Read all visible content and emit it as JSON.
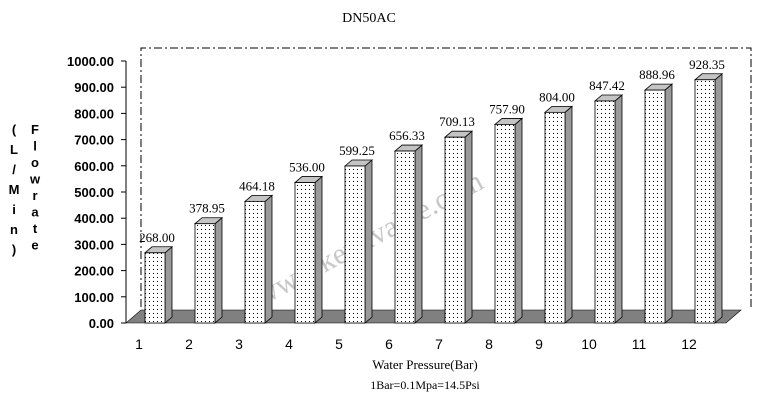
{
  "chart_data": {
    "type": "bar",
    "title": "DN50AC",
    "xlabel": "Water Pressure(Bar)",
    "note": "1Bar=0.1Mpa=14.5Psi",
    "ylabel_left": "(L/Min)",
    "ylabel_right": "Flowrate",
    "ylim": [
      0,
      1000
    ],
    "yticks": [
      "0.00",
      "100.00",
      "200.00",
      "300.00",
      "400.00",
      "500.00",
      "600.00",
      "700.00",
      "800.00",
      "900.00",
      "1000.00"
    ],
    "categories": [
      "1",
      "2",
      "3",
      "4",
      "5",
      "6",
      "7",
      "8",
      "9",
      "10",
      "11",
      "12"
    ],
    "values": [
      268.0,
      378.95,
      464.18,
      536.0,
      599.25,
      656.33,
      709.13,
      757.9,
      804.0,
      847.42,
      888.96,
      928.35
    ],
    "value_labels": [
      "268.00",
      "378.95",
      "464.18",
      "536.00",
      "599.25",
      "656.33",
      "709.13",
      "757.90",
      "804.00",
      "847.42",
      "888.96",
      "928.35"
    ],
    "watermark": "www.keyuvalve.com",
    "bar_fill": "dotted",
    "colors": {
      "floor": "#808080",
      "bar_side": "#9a9a9a",
      "bar_top": "#c4c4c4",
      "axis": "#000000"
    }
  }
}
